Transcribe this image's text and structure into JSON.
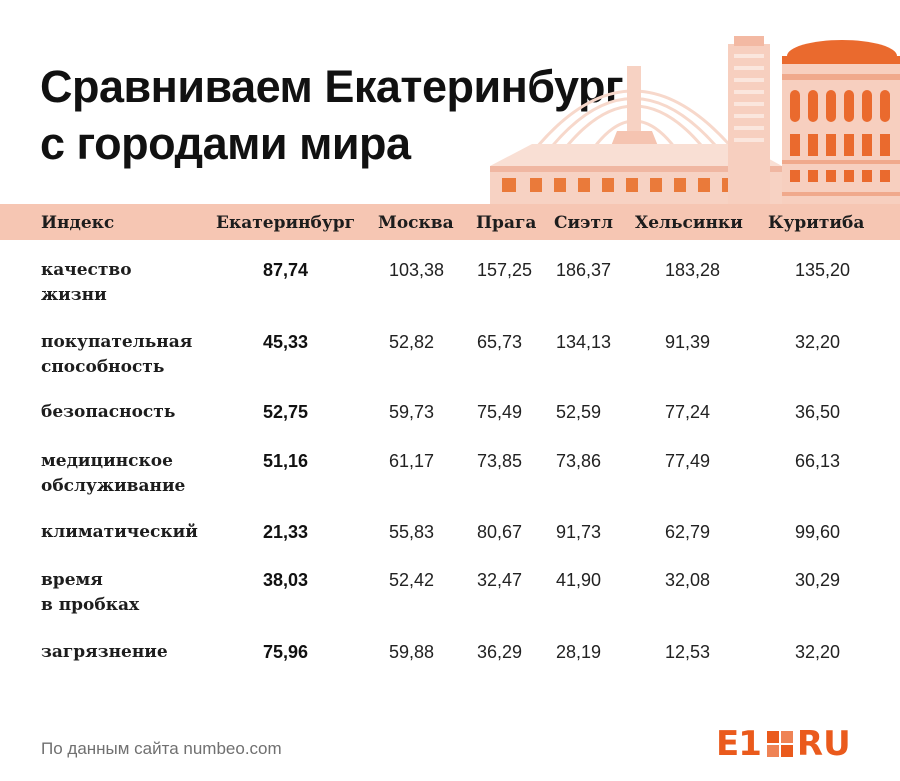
{
  "title_lines": [
    "Сравниваем Екатеринбург",
    "с городами мира"
  ],
  "chart_data": {
    "type": "table",
    "columns": [
      "Индекс",
      "Екатеринбург",
      "Москва",
      "Прага",
      "Сиэтл",
      "Хельсинки",
      "Куритиба"
    ],
    "rows": [
      {
        "label_lines": [
          "качество",
          "жизни"
        ],
        "values": [
          "87,74",
          "103,38",
          "157,25",
          "186,37",
          "183,28",
          "135,20"
        ]
      },
      {
        "label_lines": [
          "покупательная",
          "способность"
        ],
        "values": [
          "45,33",
          "52,82",
          "65,73",
          "134,13",
          "91,39",
          "32,20"
        ]
      },
      {
        "label_lines": [
          "безопасность"
        ],
        "values": [
          "52,75",
          "59,73",
          "75,49",
          "52,59",
          "77,24",
          "36,50"
        ]
      },
      {
        "label_lines": [
          "медицинское",
          "обслуживание"
        ],
        "values": [
          "51,16",
          "61,17",
          "73,85",
          "73,86",
          "77,49",
          "66,13"
        ]
      },
      {
        "label_lines": [
          "климатический"
        ],
        "values": [
          "21,33",
          "55,83",
          "80,67",
          "91,73",
          "62,79",
          "99,60"
        ]
      },
      {
        "label_lines": [
          "время",
          "в пробках"
        ],
        "values": [
          "38,03",
          "52,42",
          "32,47",
          "41,90",
          "32,08",
          "30,29"
        ]
      },
      {
        "label_lines": [
          "загрязнение"
        ],
        "values": [
          "75,96",
          "59,88",
          "36,29",
          "28,19",
          "12,53",
          "32,20"
        ]
      }
    ]
  },
  "source": "По данным сайта numbeo.com",
  "logo": {
    "left": "E1",
    "right": "RU"
  },
  "colors": {
    "band": "#f6c6b3",
    "accent": "#ea5a1c",
    "illustration_light": "#f7d2c3",
    "illustration_mid": "#f0a98c"
  },
  "icons": {
    "illustration": "city-buildings-illustration",
    "logo_mark": "e1-logo-squares-icon"
  }
}
